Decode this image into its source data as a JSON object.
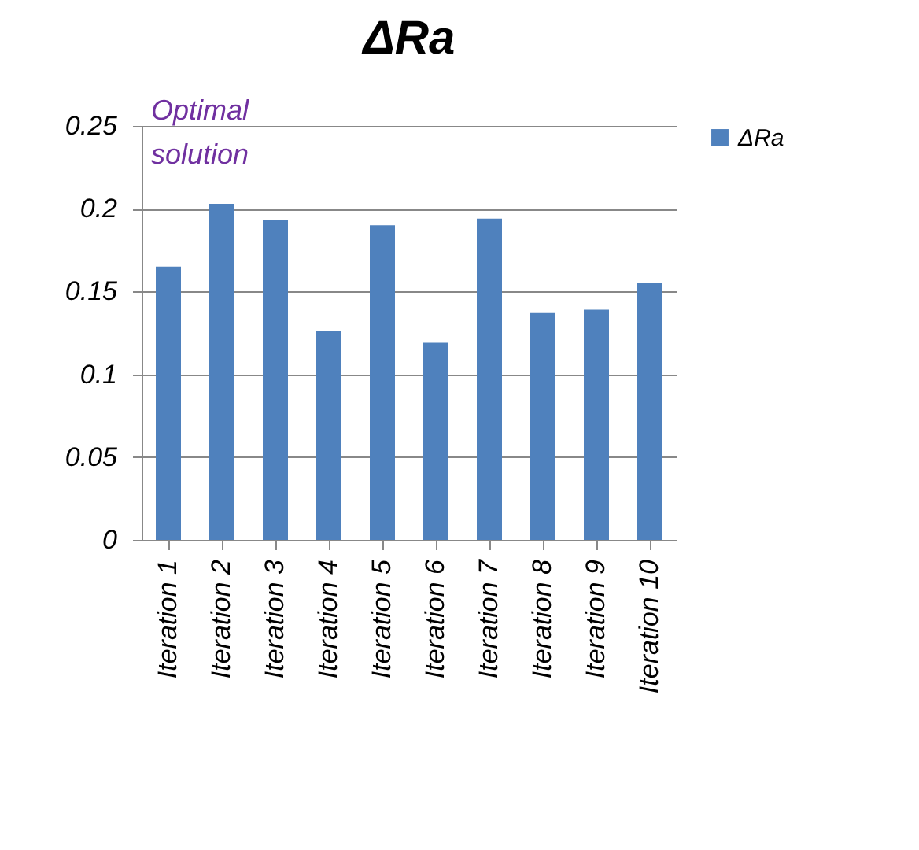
{
  "chart_data": {
    "type": "bar",
    "title": "ΔRa",
    "categories": [
      "Iteration 1",
      "Iteration 2",
      "Iteration 3",
      "Iteration 4",
      "Iteration 5",
      "Iteration 6",
      "Iteration 7",
      "Iteration 8",
      "Iteration 9",
      "Iteration 10"
    ],
    "series": [
      {
        "name": "ΔRa",
        "color": "#4f81bd",
        "values": [
          0.165,
          0.203,
          0.193,
          0.126,
          0.19,
          0.119,
          0.194,
          0.137,
          0.139,
          0.155
        ]
      }
    ],
    "ylim": [
      0,
      0.25
    ],
    "yticks": [
      0,
      0.05,
      0.1,
      0.15,
      0.2,
      0.25
    ],
    "grid": "y",
    "legend": "right",
    "annotations": [
      "Optimal solution"
    ]
  }
}
